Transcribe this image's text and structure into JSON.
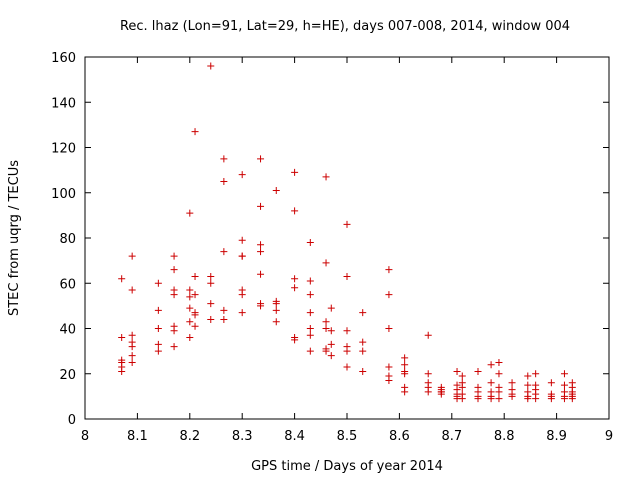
{
  "chart_data": {
    "type": "scatter",
    "title": "Rec. lhaz (Lon=91, Lat=29, h=HE), days 007-008, 2014, window 004",
    "xlabel": "GPS time / Days of year 2014",
    "ylabel": "STEC from uqrg / TECUs",
    "xlim": [
      8,
      9
    ],
    "ylim": [
      0,
      160
    ],
    "xticks": [
      8,
      8.1,
      8.2,
      8.3,
      8.4,
      8.5,
      8.6,
      8.7,
      8.8,
      8.9,
      9
    ],
    "xtick_labels": [
      "8",
      "8.1",
      "8.2",
      "8.3",
      "8.4",
      "8.5",
      "8.6",
      "8.7",
      "8.8",
      "8.9",
      "9"
    ],
    "yticks": [
      0,
      20,
      40,
      60,
      80,
      100,
      120,
      140,
      160
    ],
    "ytick_labels": [
      "0",
      "20",
      "40",
      "60",
      "80",
      "100",
      "120",
      "140",
      "160"
    ],
    "marker": "plus",
    "color": "#cc0000",
    "grid": false,
    "series": [
      {
        "name": "STEC",
        "points": [
          [
            8.07,
            62
          ],
          [
            8.07,
            36
          ],
          [
            8.07,
            26
          ],
          [
            8.07,
            25
          ],
          [
            8.07,
            23
          ],
          [
            8.07,
            21
          ],
          [
            8.09,
            72
          ],
          [
            8.09,
            57
          ],
          [
            8.09,
            37
          ],
          [
            8.09,
            34
          ],
          [
            8.09,
            32
          ],
          [
            8.09,
            28
          ],
          [
            8.09,
            25
          ],
          [
            8.14,
            60
          ],
          [
            8.14,
            48
          ],
          [
            8.14,
            40
          ],
          [
            8.14,
            33
          ],
          [
            8.14,
            30
          ],
          [
            8.17,
            72
          ],
          [
            8.17,
            66
          ],
          [
            8.17,
            57
          ],
          [
            8.17,
            55
          ],
          [
            8.17,
            41
          ],
          [
            8.17,
            39
          ],
          [
            8.17,
            32
          ],
          [
            8.2,
            91
          ],
          [
            8.2,
            57
          ],
          [
            8.2,
            54
          ],
          [
            8.2,
            49
          ],
          [
            8.2,
            43
          ],
          [
            8.2,
            36
          ],
          [
            8.21,
            127
          ],
          [
            8.21,
            63
          ],
          [
            8.21,
            55
          ],
          [
            8.21,
            47
          ],
          [
            8.21,
            46
          ],
          [
            8.21,
            41
          ],
          [
            8.24,
            156
          ],
          [
            8.24,
            63
          ],
          [
            8.24,
            60
          ],
          [
            8.24,
            51
          ],
          [
            8.24,
            44
          ],
          [
            8.265,
            115
          ],
          [
            8.265,
            105
          ],
          [
            8.265,
            74
          ],
          [
            8.265,
            48
          ],
          [
            8.265,
            44
          ],
          [
            8.3,
            108
          ],
          [
            8.3,
            79
          ],
          [
            8.3,
            72
          ],
          [
            8.3,
            72
          ],
          [
            8.3,
            57
          ],
          [
            8.3,
            55
          ],
          [
            8.3,
            47
          ],
          [
            8.335,
            115
          ],
          [
            8.335,
            94
          ],
          [
            8.335,
            77
          ],
          [
            8.335,
            74
          ],
          [
            8.335,
            64
          ],
          [
            8.335,
            51
          ],
          [
            8.335,
            50
          ],
          [
            8.365,
            101
          ],
          [
            8.365,
            52
          ],
          [
            8.365,
            51
          ],
          [
            8.365,
            48
          ],
          [
            8.365,
            43
          ],
          [
            8.4,
            109
          ],
          [
            8.4,
            92
          ],
          [
            8.4,
            62
          ],
          [
            8.4,
            58
          ],
          [
            8.4,
            36
          ],
          [
            8.4,
            35
          ],
          [
            8.43,
            78
          ],
          [
            8.43,
            61
          ],
          [
            8.43,
            55
          ],
          [
            8.43,
            47
          ],
          [
            8.43,
            40
          ],
          [
            8.43,
            37
          ],
          [
            8.43,
            30
          ],
          [
            8.46,
            107
          ],
          [
            8.46,
            69
          ],
          [
            8.46,
            43
          ],
          [
            8.46,
            40
          ],
          [
            8.46,
            31
          ],
          [
            8.46,
            30
          ],
          [
            8.47,
            49
          ],
          [
            8.47,
            39
          ],
          [
            8.47,
            33
          ],
          [
            8.47,
            28
          ],
          [
            8.5,
            86
          ],
          [
            8.5,
            63
          ],
          [
            8.5,
            39
          ],
          [
            8.5,
            32
          ],
          [
            8.5,
            30
          ],
          [
            8.5,
            23
          ],
          [
            8.53,
            47
          ],
          [
            8.53,
            34
          ],
          [
            8.53,
            30
          ],
          [
            8.53,
            21
          ],
          [
            8.58,
            66
          ],
          [
            8.58,
            55
          ],
          [
            8.58,
            40
          ],
          [
            8.58,
            23
          ],
          [
            8.58,
            19
          ],
          [
            8.58,
            17
          ],
          [
            8.61,
            27
          ],
          [
            8.61,
            24
          ],
          [
            8.61,
            21
          ],
          [
            8.61,
            20
          ],
          [
            8.61,
            14
          ],
          [
            8.61,
            12
          ],
          [
            8.655,
            37
          ],
          [
            8.655,
            20
          ],
          [
            8.655,
            16
          ],
          [
            8.655,
            14
          ],
          [
            8.655,
            12
          ],
          [
            8.68,
            14
          ],
          [
            8.68,
            13
          ],
          [
            8.68,
            12
          ],
          [
            8.68,
            12
          ],
          [
            8.68,
            11
          ],
          [
            8.71,
            21
          ],
          [
            8.71,
            15
          ],
          [
            8.71,
            13
          ],
          [
            8.71,
            11
          ],
          [
            8.71,
            10
          ],
          [
            8.71,
            9
          ],
          [
            8.72,
            19
          ],
          [
            8.72,
            16
          ],
          [
            8.72,
            14
          ],
          [
            8.72,
            11
          ],
          [
            8.72,
            9
          ],
          [
            8.75,
            21
          ],
          [
            8.75,
            14
          ],
          [
            8.75,
            12
          ],
          [
            8.75,
            10
          ],
          [
            8.75,
            9
          ],
          [
            8.775,
            24
          ],
          [
            8.775,
            16
          ],
          [
            8.775,
            12
          ],
          [
            8.775,
            10
          ],
          [
            8.775,
            9
          ],
          [
            8.79,
            25
          ],
          [
            8.79,
            20
          ],
          [
            8.79,
            14
          ],
          [
            8.79,
            12
          ],
          [
            8.79,
            9
          ],
          [
            8.815,
            16
          ],
          [
            8.815,
            13
          ],
          [
            8.815,
            11
          ],
          [
            8.815,
            10
          ],
          [
            8.845,
            19
          ],
          [
            8.845,
            15
          ],
          [
            8.845,
            12
          ],
          [
            8.845,
            10
          ],
          [
            8.845,
            9
          ],
          [
            8.86,
            20
          ],
          [
            8.86,
            15
          ],
          [
            8.86,
            13
          ],
          [
            8.86,
            11
          ],
          [
            8.86,
            9
          ],
          [
            8.89,
            16
          ],
          [
            8.89,
            11
          ],
          [
            8.89,
            10
          ],
          [
            8.89,
            9
          ],
          [
            8.915,
            20
          ],
          [
            8.915,
            15
          ],
          [
            8.915,
            12
          ],
          [
            8.915,
            10
          ],
          [
            8.915,
            9
          ],
          [
            8.93,
            16
          ],
          [
            8.93,
            14
          ],
          [
            8.93,
            12
          ],
          [
            8.93,
            11
          ],
          [
            8.93,
            10
          ],
          [
            8.93,
            9
          ]
        ]
      }
    ]
  }
}
